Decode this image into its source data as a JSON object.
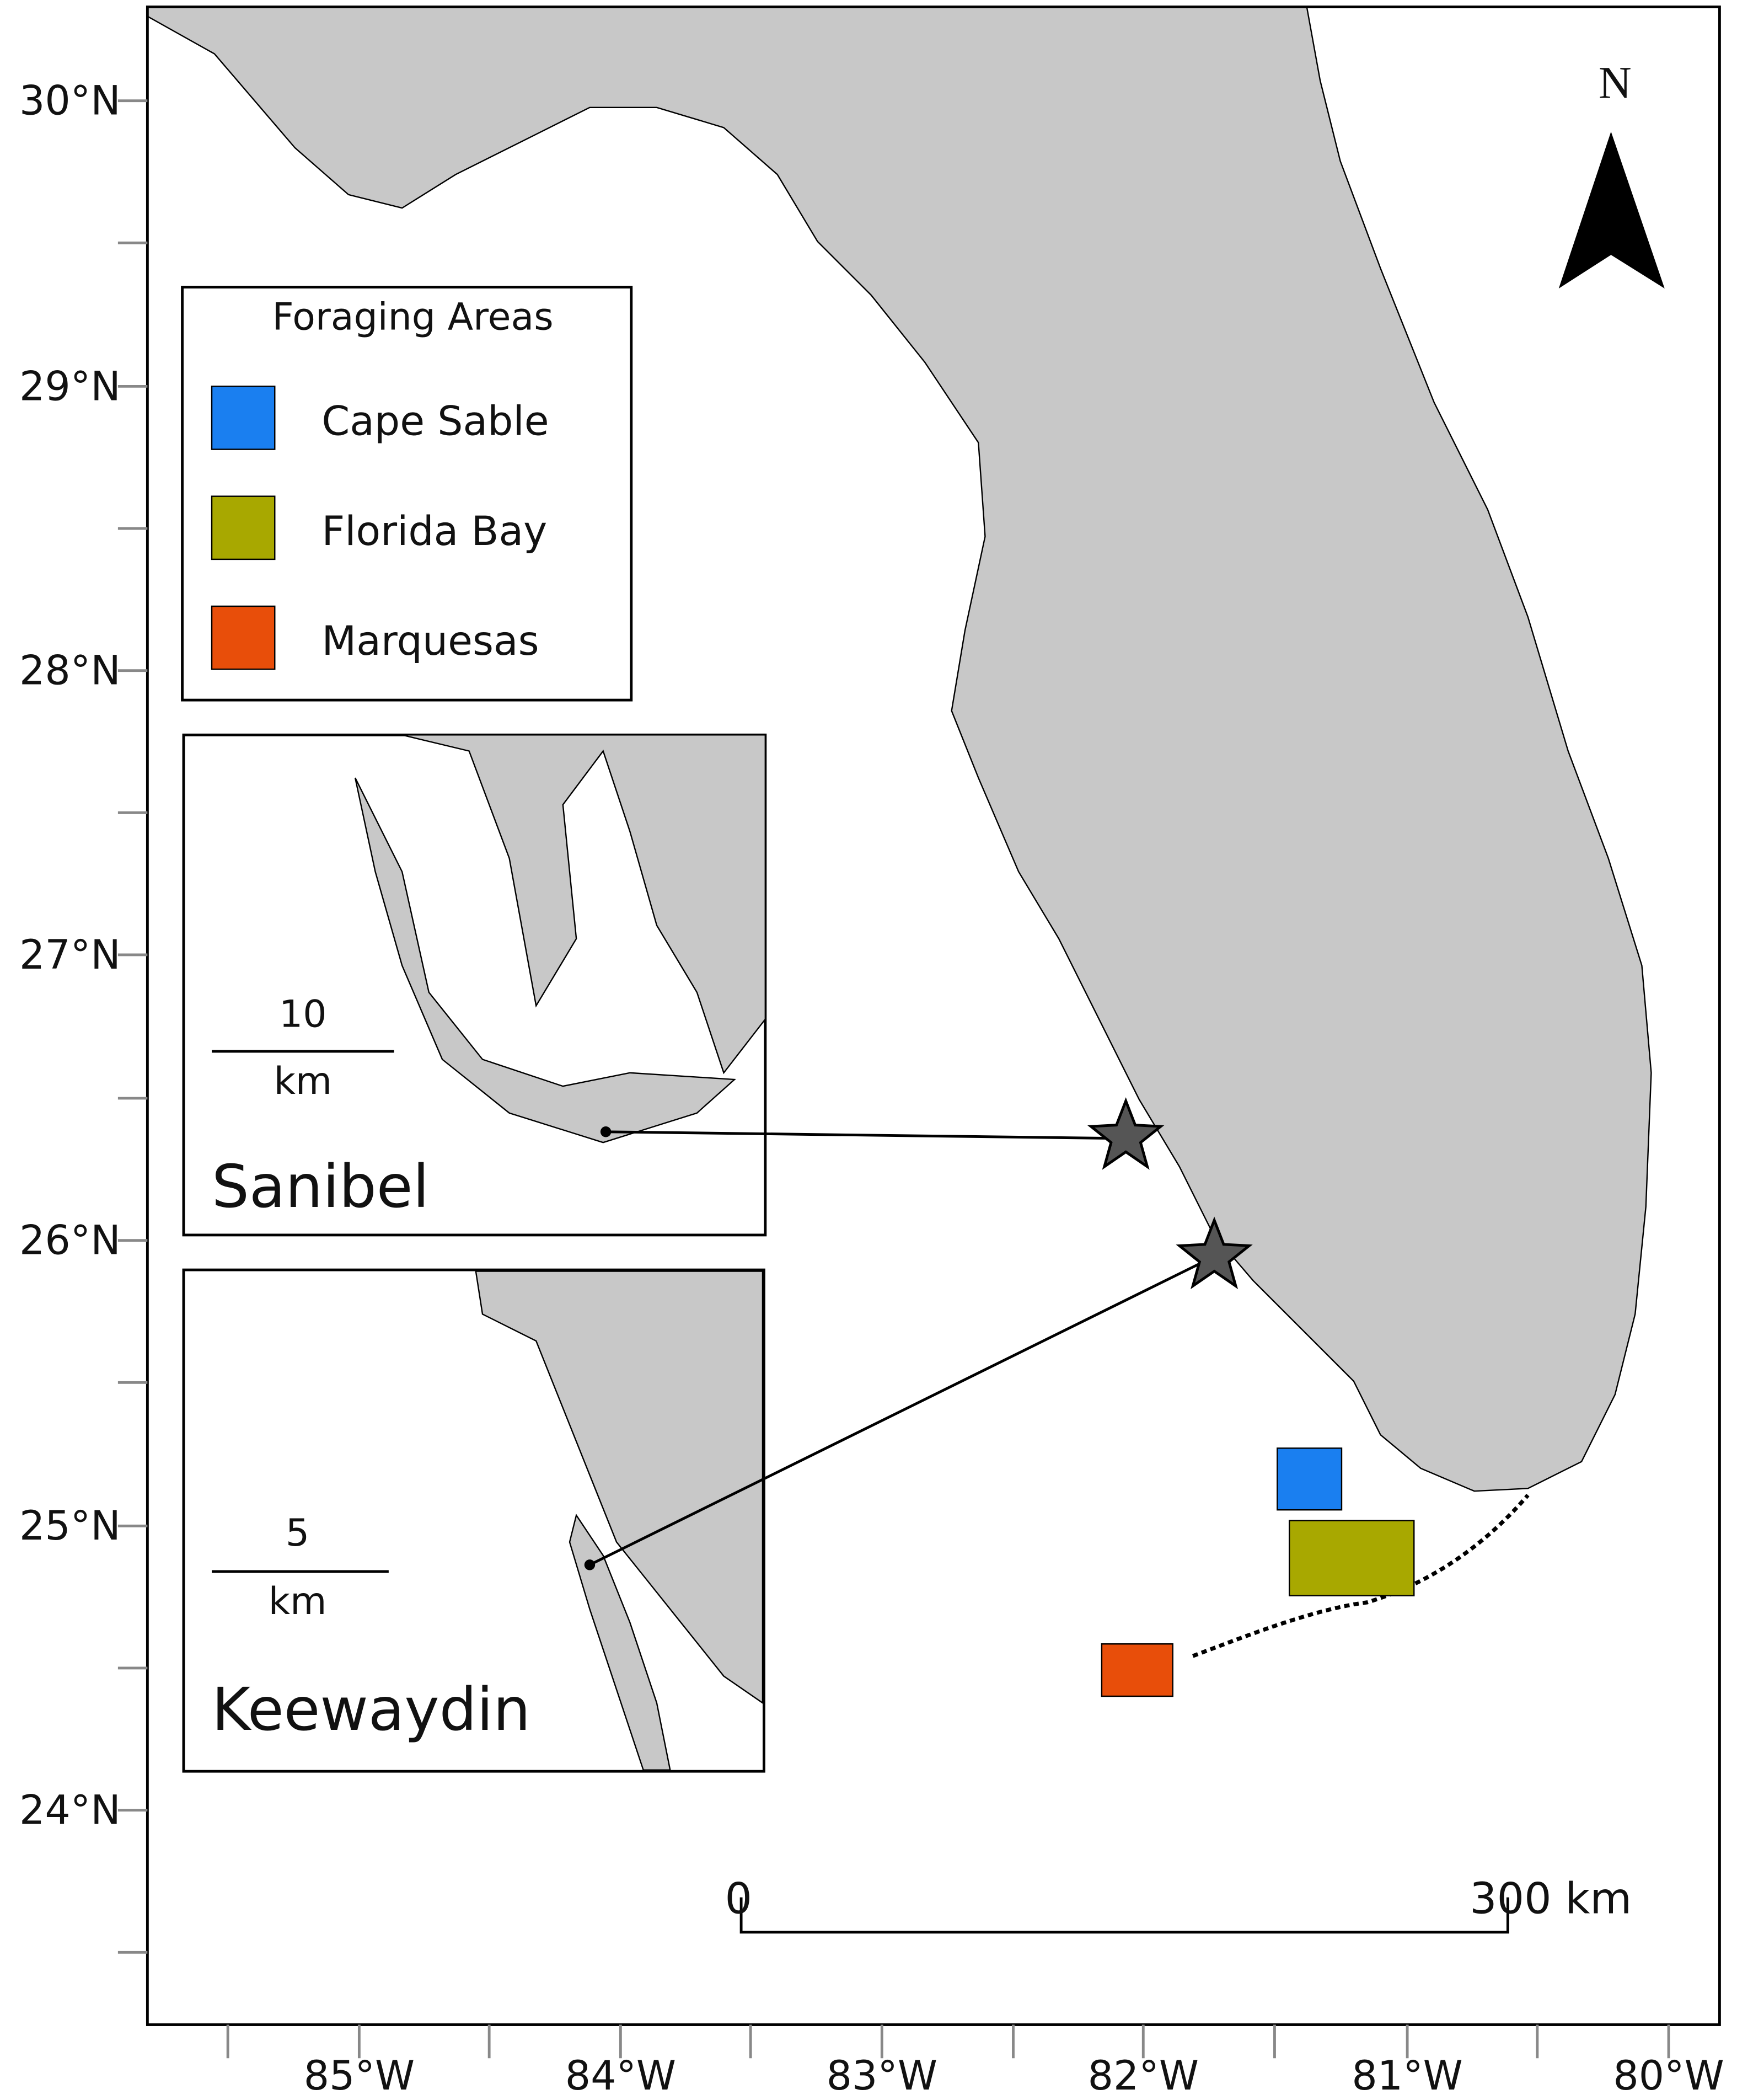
{
  "map": {
    "north": "N",
    "lat_labels": [
      "30°N",
      "29°N",
      "28°N",
      "27°N",
      "26°N",
      "25°N",
      "24°N"
    ],
    "lon_labels": [
      "85°W",
      "84°W",
      "83°W",
      "82°W",
      "81°W",
      "80°W"
    ],
    "legend": {
      "title": "Foraging Areas",
      "items": [
        {
          "name": "Cape Sable",
          "color": "#1a7ff0"
        },
        {
          "name": "Florida Bay",
          "color": "#a8a800"
        },
        {
          "name": "Marquesas",
          "color": "#e84e0a"
        }
      ]
    },
    "insets": [
      {
        "name": "Sanibel",
        "scale": "10",
        "unit": "km"
      },
      {
        "name": "Keewaydin",
        "scale": "5",
        "unit": "km"
      }
    ],
    "scale_bar": {
      "start": "0",
      "end": "300 km"
    }
  }
}
